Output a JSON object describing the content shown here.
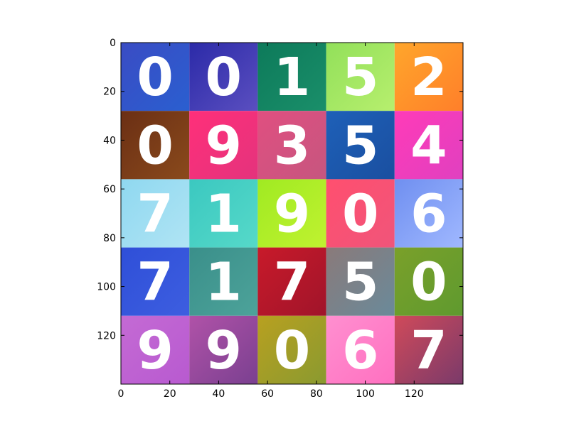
{
  "chart_data": {
    "type": "heatmap",
    "title": "",
    "xlabel": "",
    "ylabel": "",
    "xlim": [
      0,
      140
    ],
    "ylim": [
      140,
      0
    ],
    "xticks": [
      0,
      20,
      40,
      60,
      80,
      100,
      120
    ],
    "yticks": [
      0,
      20,
      40,
      60,
      80,
      100,
      120
    ],
    "grid": false,
    "tile_size": 28,
    "rows": 5,
    "cols": 5,
    "digits": [
      [
        "0",
        "0",
        "1",
        "5",
        "2"
      ],
      [
        "0",
        "9",
        "3",
        "5",
        "4"
      ],
      [
        "7",
        "1",
        "9",
        "0",
        "6"
      ],
      [
        "7",
        "1",
        "7",
        "5",
        "0"
      ],
      [
        "9",
        "9",
        "0",
        "6",
        "7"
      ]
    ],
    "backgrounds": [
      [
        [
          "#3a4cc4",
          "#2a5fd0"
        ],
        [
          "#2b2aa8",
          "#5b4fc0"
        ],
        [
          "#0d7a5a",
          "#1a8f6a"
        ],
        [
          "#92e05a",
          "#b7ef6e"
        ],
        [
          "#ffa62b",
          "#ff7f2a"
        ]
      ],
      [
        [
          "#6b2f14",
          "#8a4a1c"
        ],
        [
          "#ff2f7a",
          "#e4337c"
        ],
        [
          "#e04f80",
          "#c6567f"
        ],
        [
          "#1e60b8",
          "#1a4fa0"
        ],
        [
          "#ff3bb8",
          "#e040c0"
        ]
      ],
      [
        [
          "#8fd8f0",
          "#b0e4f4"
        ],
        [
          "#3bc8c0",
          "#56d9c9"
        ],
        [
          "#a0ea22",
          "#c0f230"
        ],
        [
          "#ff4f6f",
          "#f0557a"
        ],
        [
          "#6f8ff0",
          "#a0b8ff"
        ]
      ],
      [
        [
          "#2f4fd8",
          "#3d5ee0"
        ],
        [
          "#3a8f8a",
          "#4da39a"
        ],
        [
          "#c81a2a",
          "#a0142a"
        ],
        [
          "#8a7a7a",
          "#6a8a9a"
        ],
        [
          "#7aa02a",
          "#5f9a2f"
        ]
      ],
      [
        [
          "#c46ad4",
          "#b85ad0"
        ],
        [
          "#b052a8",
          "#7a4090"
        ],
        [
          "#b8a020",
          "#8a9a30"
        ],
        [
          "#ff8fd0",
          "#ff70c0"
        ],
        [
          "#d04a5a",
          "#7a3a6a"
        ]
      ]
    ]
  }
}
